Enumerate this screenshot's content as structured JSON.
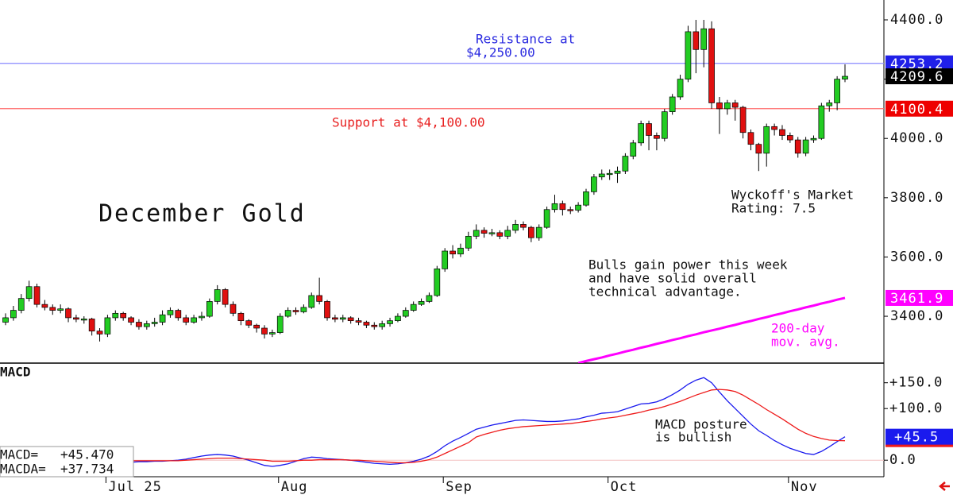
{
  "chart_data": [
    {
      "type": "candlestick",
      "title": "December Gold",
      "annotations": {
        "resistance": [
          "Resistance at",
          "$4,250.00"
        ],
        "support": [
          "Support at $4,100.00"
        ],
        "rating": [
          "Wyckoff's Market",
          "Rating: 7.5"
        ],
        "comment": [
          "Bulls gain power this week",
          "and have solid overall",
          "technical advantage."
        ],
        "ma_label": [
          "200-day",
          "mov. avg."
        ]
      },
      "categories": [
        null,
        null,
        null,
        null,
        null,
        null,
        null,
        null,
        null,
        null,
        null,
        null,
        null,
        "Jul 25",
        null,
        null,
        null,
        null,
        null,
        null,
        null,
        null,
        null,
        null,
        null,
        null,
        null,
        null,
        null,
        null,
        null,
        null,
        null,
        null,
        null,
        "Aug",
        null,
        null,
        null,
        null,
        null,
        null,
        null,
        null,
        null,
        null,
        null,
        null,
        null,
        null,
        null,
        null,
        null,
        null,
        null,
        null,
        "Sep",
        null,
        null,
        null,
        null,
        null,
        null,
        null,
        null,
        null,
        null,
        null,
        null,
        null,
        null,
        null,
        null,
        null,
        null,
        null,
        null,
        "Oct",
        null,
        null,
        null,
        null,
        null,
        null,
        null,
        null,
        null,
        null,
        null,
        null,
        null,
        null,
        null,
        null,
        null,
        null,
        null,
        null,
        null,
        null,
        "Nov",
        null,
        null,
        null,
        null,
        null,
        null,
        null
      ],
      "candles": [
        [
          3380,
          3410,
          3370,
          3395
        ],
        [
          3395,
          3435,
          3385,
          3420
        ],
        [
          3420,
          3475,
          3410,
          3460
        ],
        [
          3460,
          3520,
          3450,
          3500
        ],
        [
          3500,
          3510,
          3430,
          3440
        ],
        [
          3440,
          3455,
          3420,
          3430
        ],
        [
          3430,
          3440,
          3405,
          3420
        ],
        [
          3420,
          3440,
          3410,
          3425
        ],
        [
          3425,
          3430,
          3380,
          3395
        ],
        [
          3395,
          3405,
          3380,
          3390
        ],
        [
          3390,
          3400,
          3375,
          3391
        ],
        [
          3391,
          3395,
          3335,
          3350
        ],
        [
          3350,
          3360,
          3315,
          3340
        ],
        [
          3340,
          3405,
          3330,
          3395
        ],
        [
          3395,
          3420,
          3385,
          3410
        ],
        [
          3410,
          3415,
          3385,
          3395
        ],
        [
          3395,
          3400,
          3370,
          3380
        ],
        [
          3380,
          3390,
          3355,
          3365
        ],
        [
          3365,
          3385,
          3355,
          3375
        ],
        [
          3375,
          3395,
          3365,
          3380
        ],
        [
          3380,
          3420,
          3370,
          3405
        ],
        [
          3405,
          3430,
          3395,
          3420
        ],
        [
          3420,
          3425,
          3385,
          3395
        ],
        [
          3395,
          3405,
          3370,
          3380
        ],
        [
          3380,
          3405,
          3375,
          3395
        ],
        [
          3395,
          3415,
          3385,
          3400
        ],
        [
          3400,
          3460,
          3395,
          3450
        ],
        [
          3450,
          3505,
          3440,
          3490
        ],
        [
          3490,
          3495,
          3430,
          3440
        ],
        [
          3440,
          3450,
          3400,
          3410
        ],
        [
          3410,
          3415,
          3370,
          3385
        ],
        [
          3385,
          3390,
          3360,
          3370
        ],
        [
          3370,
          3375,
          3345,
          3360
        ],
        [
          3360,
          3370,
          3325,
          3340
        ],
        [
          3340,
          3355,
          3330,
          3345
        ],
        [
          3345,
          3410,
          3340,
          3400
        ],
        [
          3400,
          3430,
          3395,
          3420
        ],
        [
          3420,
          3430,
          3405,
          3415
        ],
        [
          3415,
          3440,
          3410,
          3430
        ],
        [
          3430,
          3480,
          3425,
          3470
        ],
        [
          3470,
          3530,
          3440,
          3450
        ],
        [
          3450,
          3455,
          3385,
          3395
        ],
        [
          3395,
          3405,
          3380,
          3390
        ],
        [
          3390,
          3405,
          3380,
          3395
        ],
        [
          3395,
          3400,
          3375,
          3385
        ],
        [
          3385,
          3395,
          3370,
          3380
        ],
        [
          3380,
          3385,
          3360,
          3370
        ],
        [
          3370,
          3380,
          3355,
          3365
        ],
        [
          3365,
          3385,
          3355,
          3375
        ],
        [
          3375,
          3395,
          3365,
          3385
        ],
        [
          3385,
          3410,
          3380,
          3400
        ],
        [
          3400,
          3430,
          3395,
          3420
        ],
        [
          3420,
          3450,
          3415,
          3440
        ],
        [
          3440,
          3460,
          3435,
          3450
        ],
        [
          3450,
          3480,
          3445,
          3470
        ],
        [
          3470,
          3570,
          3465,
          3560
        ],
        [
          3560,
          3630,
          3550,
          3620
        ],
        [
          3620,
          3640,
          3595,
          3610
        ],
        [
          3610,
          3645,
          3600,
          3630
        ],
        [
          3630,
          3685,
          3620,
          3670
        ],
        [
          3670,
          3710,
          3660,
          3690
        ],
        [
          3690,
          3700,
          3665,
          3680
        ],
        [
          3680,
          3695,
          3670,
          3682
        ],
        [
          3682,
          3690,
          3660,
          3670
        ],
        [
          3670,
          3705,
          3660,
          3690
        ],
        [
          3690,
          3725,
          3680,
          3710
        ],
        [
          3710,
          3720,
          3690,
          3700
        ],
        [
          3700,
          3705,
          3650,
          3665
        ],
        [
          3665,
          3710,
          3655,
          3700
        ],
        [
          3700,
          3770,
          3695,
          3760
        ],
        [
          3760,
          3810,
          3750,
          3780
        ],
        [
          3780,
          3790,
          3740,
          3760
        ],
        [
          3760,
          3770,
          3745,
          3758
        ],
        [
          3758,
          3785,
          3750,
          3775
        ],
        [
          3775,
          3830,
          3770,
          3820
        ],
        [
          3820,
          3880,
          3810,
          3870
        ],
        [
          3870,
          3895,
          3860,
          3880
        ],
        [
          3880,
          3895,
          3860,
          3882
        ],
        [
          3882,
          3905,
          3850,
          3890
        ],
        [
          3890,
          3950,
          3880,
          3940
        ],
        [
          3940,
          3995,
          3930,
          3985
        ],
        [
          3985,
          4060,
          3975,
          4050
        ],
        [
          4050,
          4060,
          3960,
          4010
        ],
        [
          4010,
          4020,
          3960,
          4000
        ],
        [
          4000,
          4100,
          3990,
          4090
        ],
        [
          4090,
          4150,
          4080,
          4140
        ],
        [
          4140,
          4215,
          4130,
          4200
        ],
        [
          4200,
          4380,
          4190,
          4360
        ],
        [
          4360,
          4400,
          4220,
          4300
        ],
        [
          4300,
          4400,
          4240,
          4370
        ],
        [
          4370,
          4395,
          4100,
          4120
        ],
        [
          4120,
          4140,
          4015,
          4100
        ],
        [
          4100,
          4130,
          4080,
          4120
        ],
        [
          4120,
          4130,
          4060,
          4105
        ],
        [
          4105,
          4110,
          4000,
          4020
        ],
        [
          4020,
          4030,
          3960,
          3980
        ],
        [
          3980,
          3985,
          3890,
          3950
        ],
        [
          3950,
          4050,
          3905,
          4040
        ],
        [
          4040,
          4050,
          4010,
          4030
        ],
        [
          4030,
          4045,
          3995,
          4010
        ],
        [
          4010,
          4020,
          3985,
          3995
        ],
        [
          3995,
          4005,
          3935,
          3950
        ],
        [
          3950,
          4005,
          3940,
          3995
        ],
        [
          3995,
          4010,
          3985,
          4000
        ],
        [
          4000,
          4120,
          3995,
          4110
        ],
        [
          4110,
          4130,
          4090,
          4120
        ],
        [
          4120,
          4210,
          4095,
          4200
        ],
        [
          4200,
          4250,
          4190,
          4209.6
        ]
      ],
      "up_color": "#22cc22",
      "down_color": "#e01010",
      "ma200": {
        "color": "#ff00ff",
        "values": [
          null,
          null,
          null,
          null,
          null,
          null,
          null,
          null,
          null,
          null,
          null,
          null,
          null,
          null,
          null,
          null,
          null,
          null,
          null,
          null,
          null,
          null,
          null,
          null,
          null,
          null,
          null,
          null,
          null,
          null,
          null,
          null,
          null,
          null,
          null,
          null,
          null,
          null,
          null,
          null,
          null,
          null,
          null,
          null,
          null,
          null,
          null,
          null,
          null,
          null,
          null,
          null,
          null,
          null,
          null,
          null,
          null,
          null,
          null,
          null,
          null,
          null,
          null,
          null,
          null,
          null,
          null,
          null,
          null,
          null,
          null,
          null,
          null,
          3242,
          3249,
          3255,
          3261,
          3268,
          3274,
          3281,
          3287,
          3294,
          3300,
          3307,
          3313,
          3320,
          3326,
          3333,
          3339,
          3346,
          3352,
          3358,
          3365,
          3371,
          3378,
          3384,
          3391,
          3397,
          3404,
          3410,
          3417,
          3423,
          3430,
          3436,
          3443,
          3449,
          3456,
          3461.9
        ]
      },
      "lines": [
        {
          "value": 4253.2,
          "color": "#8888ff",
          "tag_color": "#2020e8"
        },
        {
          "value": 4100.4,
          "color": "#ff6a6a",
          "tag_color": "#ee0000"
        }
      ],
      "ylim": [
        3242,
        4467
      ],
      "yticks": [
        {
          "value": 3400,
          "label": "3400.0"
        },
        {
          "value": 3600,
          "label": "3600.0"
        },
        {
          "value": 3800,
          "label": "3800.0"
        },
        {
          "value": 4000,
          "label": "4000.0"
        },
        {
          "value": 4200,
          "label": "4200.0"
        },
        {
          "value": 4400,
          "label": "4400.0"
        }
      ]
    },
    {
      "type": "line",
      "title": "MACD",
      "annotation": [
        "MACD posture",
        "is bullish"
      ],
      "series": [
        {
          "name": "MACD=",
          "color": "#1a1aee",
          "legend_label": "+45.470",
          "tag_label": "+45.5",
          "values": [
            20,
            19,
            18,
            16,
            14,
            12,
            10,
            8,
            6,
            4,
            2,
            0,
            -2,
            -3,
            -3,
            -4,
            -4,
            -3,
            -3,
            -2,
            -2,
            -1,
            0,
            2,
            5,
            8,
            10,
            11,
            10,
            8,
            4,
            0,
            -5,
            -10,
            -12,
            -10,
            -7,
            -2,
            3,
            6,
            5,
            3,
            2,
            1,
            0,
            -2,
            -4,
            -6,
            -7,
            -8,
            -7,
            -5,
            -2,
            2,
            8,
            17,
            28,
            37,
            44,
            52,
            60,
            64,
            68,
            71,
            74,
            77,
            78,
            77,
            76,
            75,
            75,
            76,
            78,
            80,
            84,
            87,
            91,
            92,
            94,
            99,
            104,
            109,
            110,
            113,
            119,
            127,
            136,
            147,
            155,
            160,
            150,
            132,
            115,
            100,
            85,
            70,
            57,
            48,
            38,
            30,
            23,
            18,
            13,
            11,
            17,
            26,
            36,
            45.47
          ]
        },
        {
          "name": "MACDA=",
          "color": "#ee1a1a",
          "legend_label": "+37.734",
          "values": [
            8,
            8,
            7,
            7,
            6,
            5,
            4,
            3,
            2,
            1,
            0,
            0,
            -1,
            -1,
            -1,
            -1,
            -1,
            -1,
            -1,
            -1,
            -1,
            -1,
            -1,
            0,
            1,
            2,
            3,
            4,
            4,
            4,
            3,
            2,
            1,
            0,
            -2,
            -2,
            -2,
            -1,
            0,
            0,
            1,
            1,
            1,
            1,
            0,
            0,
            -1,
            -2,
            -3,
            -4,
            -5,
            -5,
            -4,
            -2,
            1,
            6,
            13,
            20,
            27,
            34,
            45,
            50,
            54,
            58,
            61,
            63,
            65,
            66,
            67,
            68,
            69,
            70,
            71,
            73,
            75,
            77,
            80,
            82,
            84,
            87,
            90,
            93,
            97,
            100,
            104,
            109,
            114,
            120,
            126,
            131,
            136,
            137,
            136,
            133,
            126,
            117,
            108,
            98,
            89,
            80,
            70,
            60,
            52,
            46,
            42,
            39,
            38,
            37.734
          ]
        }
      ],
      "ylim": [
        -32,
        188
      ],
      "yticks": [
        {
          "value": 0,
          "label": "0.0"
        },
        {
          "value": 100,
          "label": "+100.0"
        },
        {
          "value": 150,
          "label": "+150.0"
        }
      ]
    }
  ]
}
